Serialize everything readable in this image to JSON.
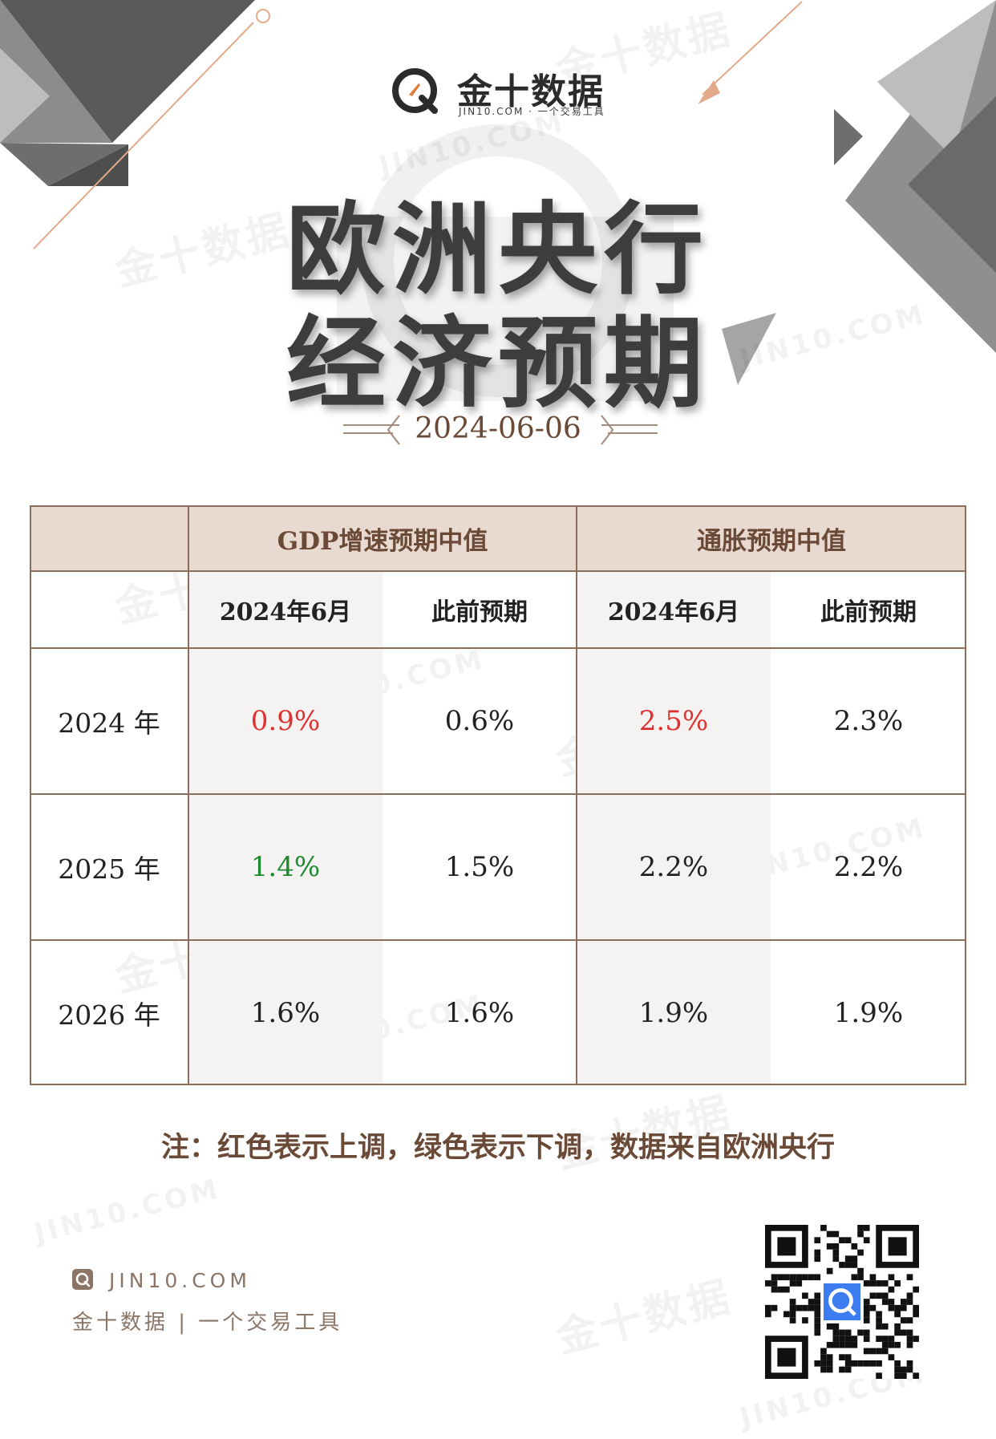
{
  "brand": {
    "name": "金十数据",
    "sub": "JIN10.COM · 一个交易工具"
  },
  "title": {
    "line1": "欧洲央行",
    "line2": "经济预期"
  },
  "date": "2024-06-06",
  "watermark": {
    "cn": "金十数据",
    "en": "JIN10.COM"
  },
  "table": {
    "groups": [
      "GDP增速预期中值",
      "通胀预期中值"
    ],
    "subheaders": [
      "2024年6月",
      "此前预期",
      "2024年6月",
      "此前预期"
    ],
    "rows": [
      {
        "year": "2024 年",
        "values": [
          "0.9%",
          "0.6%",
          "2.5%",
          "2.3%"
        ],
        "status": [
          "up",
          "",
          "up",
          ""
        ]
      },
      {
        "year": "2025 年",
        "values": [
          "1.4%",
          "1.5%",
          "2.2%",
          "2.2%"
        ],
        "status": [
          "down",
          "",
          "",
          ""
        ]
      },
      {
        "year": "2026 年",
        "values": [
          "1.6%",
          "1.6%",
          "1.9%",
          "1.9%"
        ],
        "status": [
          "",
          "",
          "",
          ""
        ]
      }
    ],
    "colors": {
      "up": "#e03131",
      "down": "#1e8a2e",
      "header_bg": "#e9dad1",
      "border": "#8a6d5b"
    }
  },
  "note": "注：红色表示上调，绿色表示下调，数据来自欧洲央行",
  "footer": {
    "url": "JIN10.COM",
    "tagline": "金十数据 | 一个交易工具"
  },
  "icons": [
    "jin10-logo-icon",
    "qr-code"
  ]
}
